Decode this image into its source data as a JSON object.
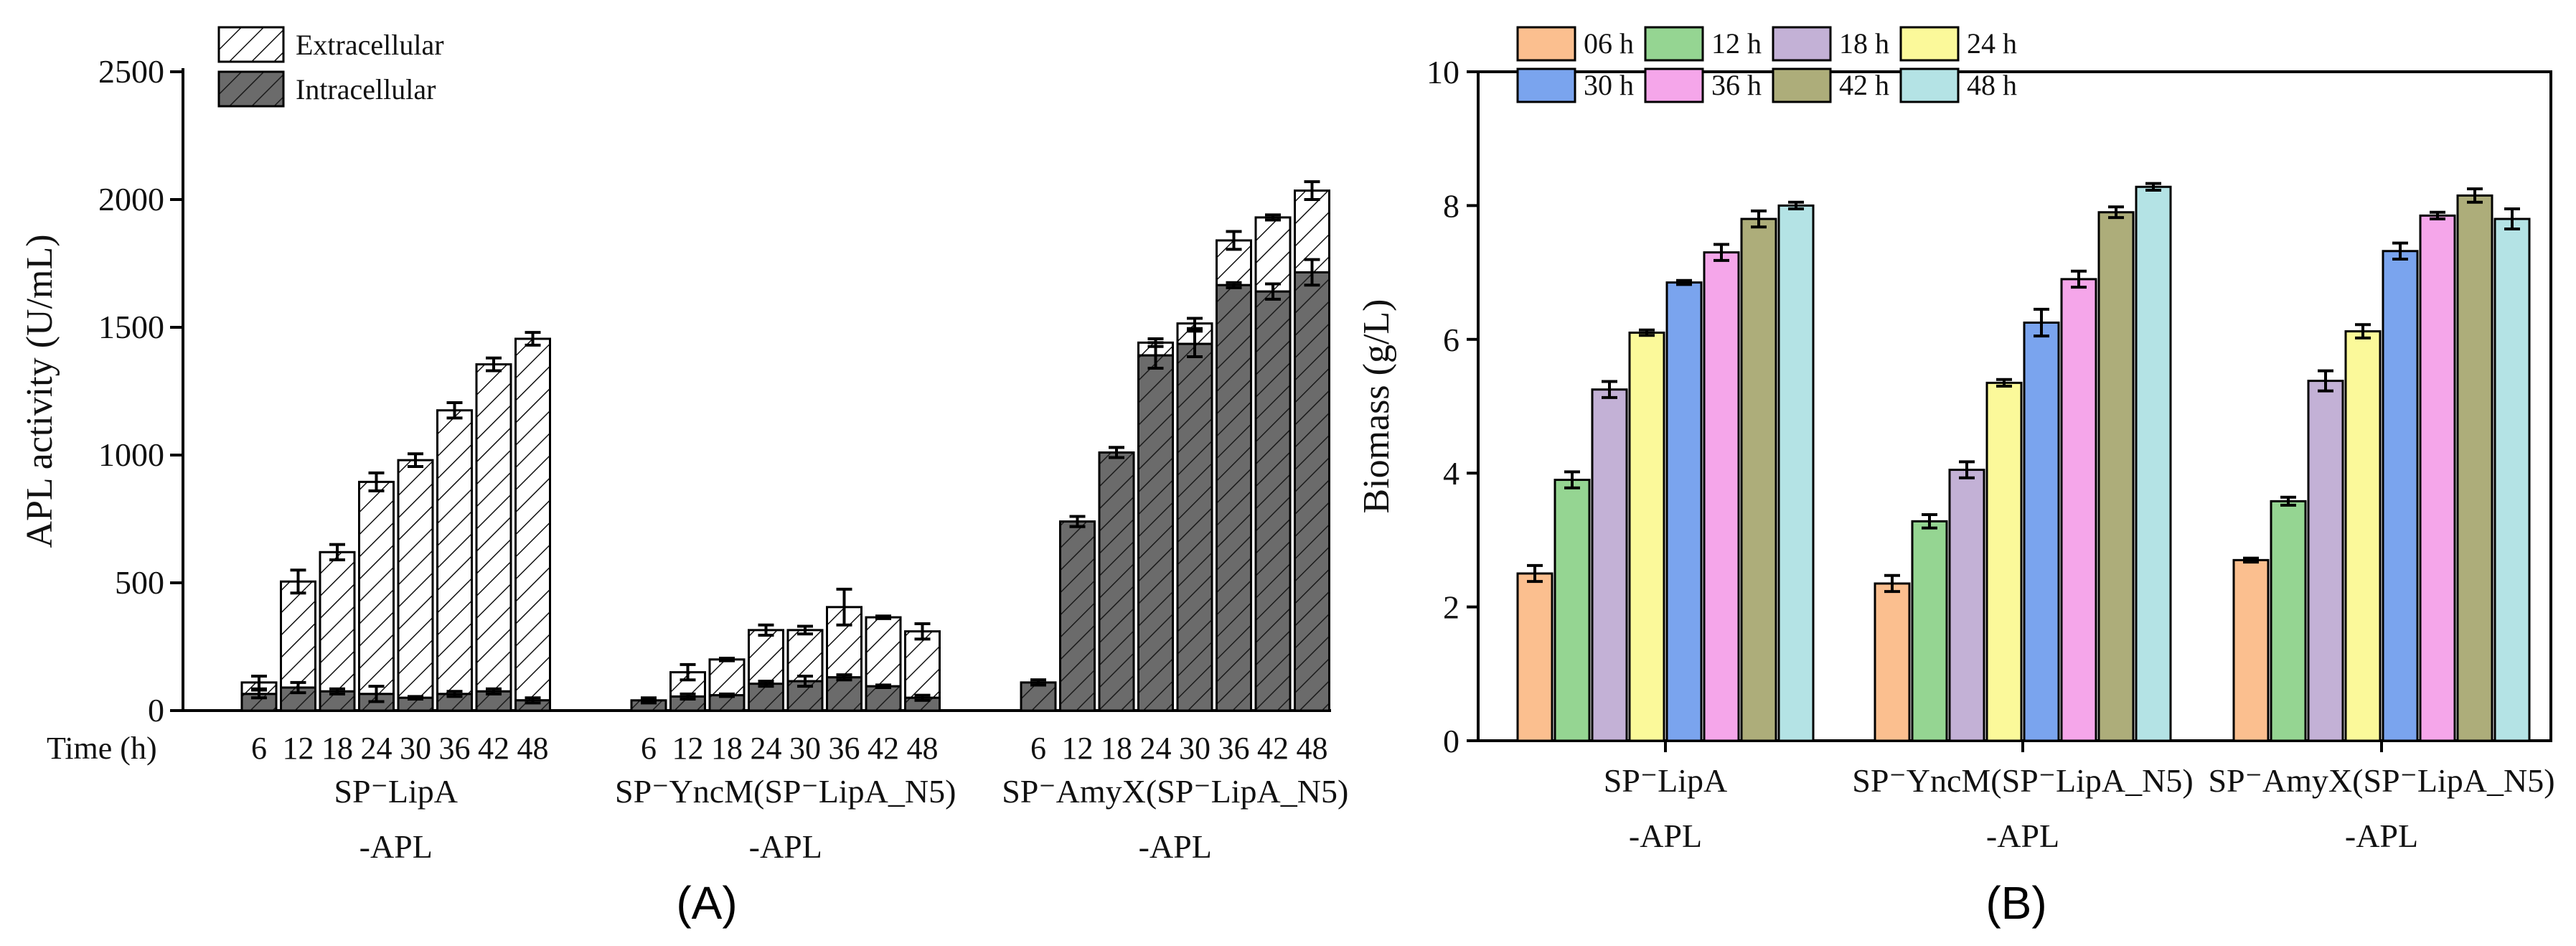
{
  "chart_data": [
    {
      "type": "bar",
      "stacked": true,
      "panel_label": "(A)",
      "ylabel": "APL activity (U/mL)",
      "xlabel_prefix": "Time (h)",
      "ylim": [
        0,
        2500
      ],
      "yticks": [
        0,
        500,
        1000,
        1500,
        2000,
        2500
      ],
      "time_points": [
        "6",
        "12",
        "18",
        "24",
        "30",
        "36",
        "42",
        "48"
      ],
      "legend": [
        {
          "name": "Extracellular",
          "pattern": "white-hatch"
        },
        {
          "name": "Intracellular",
          "pattern": "gray-hatch"
        }
      ],
      "groups": [
        {
          "label_line1": "SP⁻LipA",
          "label_line2": "-APL",
          "total": [
            110,
            505,
            620,
            895,
            980,
            1175,
            1355,
            1455
          ],
          "total_err": [
            25,
            45,
            30,
            35,
            25,
            30,
            25,
            25
          ],
          "intracellular": [
            65,
            90,
            75,
            65,
            50,
            65,
            75,
            40
          ],
          "intracellular_err": [
            15,
            20,
            10,
            30,
            5,
            10,
            10,
            10
          ]
        },
        {
          "label_line1": "SP⁻YncM(SP⁻LipA_N5)",
          "label_line2": "-APL",
          "total": [
            40,
            150,
            200,
            315,
            315,
            405,
            365,
            310
          ],
          "total_err": [
            10,
            30,
            5,
            20,
            15,
            70,
            5,
            30
          ],
          "intracellular": [
            40,
            55,
            60,
            105,
            115,
            130,
            95,
            50
          ],
          "intracellular_err": [
            5,
            10,
            5,
            10,
            20,
            10,
            5,
            10
          ]
        },
        {
          "label_line1": "SP⁻AmyX(SP⁻LipA_N5)",
          "label_line2": "-APL",
          "total": [
            110,
            740,
            1010,
            1440,
            1515,
            1840,
            1930,
            2035
          ],
          "total_err": [
            10,
            20,
            20,
            15,
            20,
            35,
            10,
            35
          ],
          "intracellular": [
            110,
            740,
            1010,
            1390,
            1435,
            1665,
            1640,
            1715
          ],
          "intracellular_err": [
            10,
            20,
            20,
            50,
            50,
            10,
            30,
            50
          ]
        }
      ]
    },
    {
      "type": "bar",
      "panel_label": "(B)",
      "ylabel": "Biomass (g/L)",
      "ylim": [
        0,
        10
      ],
      "yticks": [
        0,
        2,
        4,
        6,
        8,
        10
      ],
      "legend": [
        {
          "name": "06 h",
          "color": "#fbbf8f"
        },
        {
          "name": "12 h",
          "color": "#95d592"
        },
        {
          "name": "18 h",
          "color": "#c3b1d6"
        },
        {
          "name": "24 h",
          "color": "#fbf99a"
        },
        {
          "name": "30 h",
          "color": "#7aa4ee"
        },
        {
          "name": "36 h",
          "color": "#f5a6ea"
        },
        {
          "name": "42 h",
          "color": "#adad7a"
        },
        {
          "name": "48 h",
          "color": "#b4e3e5"
        }
      ],
      "groups": [
        {
          "label_line1": "SP⁻LipA",
          "label_line2": "-APL",
          "values": [
            2.5,
            3.9,
            5.25,
            6.1,
            6.85,
            7.3,
            7.8,
            8.0
          ],
          "errors": [
            0.12,
            0.12,
            0.12,
            0.04,
            0.03,
            0.12,
            0.12,
            0.05
          ]
        },
        {
          "label_line1": "SP⁻YncM(SP⁻LipA_N5)",
          "label_line2": "-APL",
          "values": [
            2.35,
            3.28,
            4.05,
            5.35,
            6.25,
            6.9,
            7.9,
            8.28
          ],
          "errors": [
            0.12,
            0.1,
            0.12,
            0.05,
            0.2,
            0.12,
            0.08,
            0.05
          ]
        },
        {
          "label_line1": "SP⁻AmyX(SP⁻LipA_N5)",
          "label_line2": "-APL",
          "values": [
            2.7,
            3.58,
            5.38,
            6.12,
            7.32,
            7.85,
            8.15,
            7.8
          ],
          "errors": [
            0.03,
            0.06,
            0.15,
            0.1,
            0.12,
            0.05,
            0.1,
            0.15
          ]
        }
      ]
    }
  ]
}
